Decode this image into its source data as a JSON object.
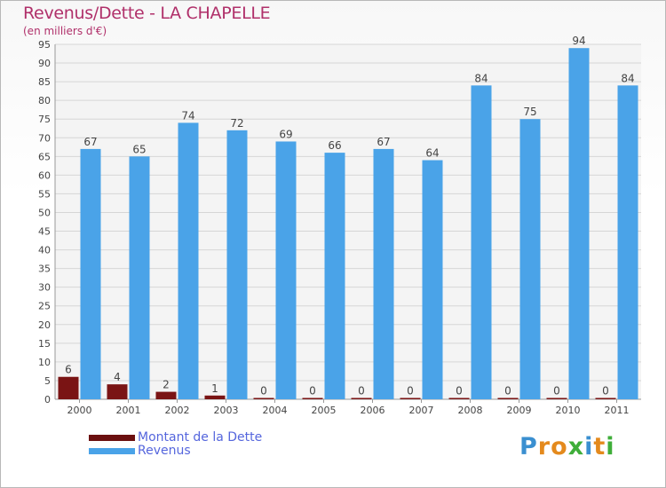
{
  "chart_data": {
    "type": "bar",
    "title": "Revenus/Dette - LA CHAPELLE",
    "subtitle": "(en milliers d'€)",
    "categories": [
      "2000",
      "2001",
      "2002",
      "2003",
      "2004",
      "2005",
      "2006",
      "2007",
      "2008",
      "2009",
      "2010",
      "2011"
    ],
    "series": [
      {
        "name": "Montant de la Dette",
        "color": "#7a1414",
        "values": [
          6,
          4,
          2,
          1,
          0,
          0,
          0,
          0,
          0,
          0,
          0,
          0
        ]
      },
      {
        "name": "Revenus",
        "color": "#4aa3e8",
        "values": [
          67,
          65,
          74,
          72,
          69,
          66,
          67,
          64,
          84,
          75,
          94,
          84
        ]
      }
    ],
    "ylim": [
      0,
      95
    ],
    "ytick_step": 5,
    "grid": true,
    "legend_position": "bottom-left",
    "xlabel": "",
    "ylabel": ""
  },
  "logo": {
    "letters": [
      {
        "ch": "P",
        "color": "#3a8fd0"
      },
      {
        "ch": "r",
        "color": "#e48a1d"
      },
      {
        "ch": "o",
        "color": "#e48a1d"
      },
      {
        "ch": "x",
        "color": "#3fae3a"
      },
      {
        "ch": "i",
        "color": "#3a8fd0"
      },
      {
        "ch": "t",
        "color": "#e48a1d"
      },
      {
        "ch": "i",
        "color": "#3fae3a"
      }
    ]
  }
}
